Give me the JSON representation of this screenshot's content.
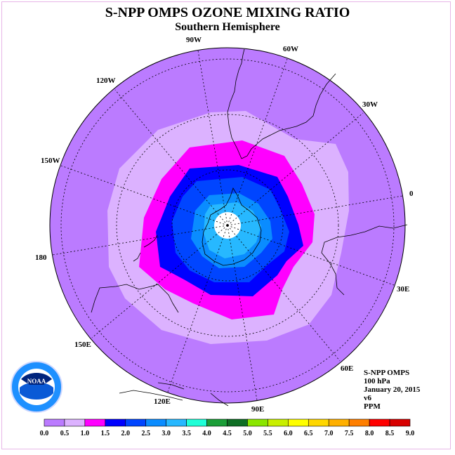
{
  "title": "S-NPP OMPS OZONE MIXING RATIO",
  "subtitle": "Southern Hemisphere",
  "longitude_labels": {
    "lon_90w": "90W",
    "lon_60w": "60W",
    "lon_30w": "30W",
    "lon_0": "0",
    "lon_30e": "30E",
    "lon_60e": "60E",
    "lon_90e": "90E",
    "lon_120e": "120E",
    "lon_150e": "150E",
    "lon_180": "180",
    "lon_150w": "150W",
    "lon_120w": "120W"
  },
  "info": {
    "instrument": "S-NPP OMPS",
    "level": "100 hPa",
    "date": "January 20, 2015",
    "version": "v6",
    "units": "PPM"
  },
  "logo_text": "NOAA",
  "colorbar": {
    "labels": [
      "0.0",
      "0.5",
      "1.0",
      "1.5",
      "2.0",
      "2.5",
      "3.0",
      "3.5",
      "4.0",
      "4.5",
      "5.0",
      "5.5",
      "6.0",
      "6.5",
      "7.0",
      "7.5",
      "8.0",
      "8.5",
      "9.0"
    ],
    "colors": [
      "#bb7bff",
      "#dcb2ff",
      "#ff00ff",
      "#0000ff",
      "#0045ff",
      "#0a8cff",
      "#27b8ff",
      "#1fffd7",
      "#1b9e38",
      "#0e6e24",
      "#8ae600",
      "#c9ef00",
      "#ffff00",
      "#ffd700",
      "#ffb000",
      "#ff7f00",
      "#ff0000",
      "#d80000",
      "#8b5a3c"
    ]
  },
  "map_colors": {
    "background": "#bb7bff",
    "ring_0_5": "#dcb2ff",
    "ring_1_0": "#ff00ff",
    "ring_1_5": "#0000ff",
    "ring_2_0": "#0045ff",
    "ring_2_5": "#0a8cff",
    "ring_3_0": "#27b8ff",
    "pole": "#ffffff"
  }
}
